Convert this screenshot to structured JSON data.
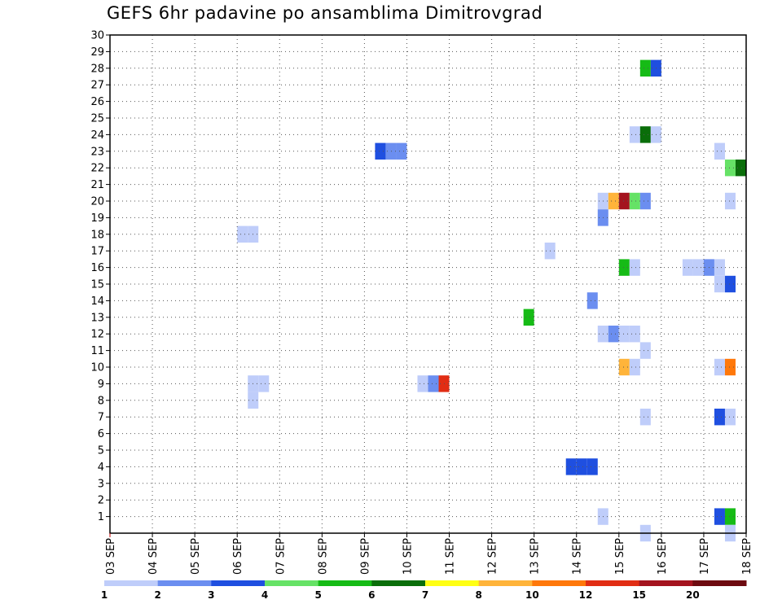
{
  "chart_data": {
    "type": "heatmap",
    "title": "GEFS 6hr padavine po ansamblima Dimitrovgrad",
    "x_ticks": [
      "03 SEP",
      "04 SEP",
      "05 SEP",
      "06 SEP",
      "07 SEP",
      "08 SEP",
      "09 SEP",
      "10 SEP",
      "11 SEP",
      "12 SEP",
      "13 SEP",
      "14 SEP",
      "15 SEP",
      "16 SEP",
      "17 SEP",
      "18 SEP"
    ],
    "y_ticks": [
      1,
      2,
      3,
      4,
      5,
      6,
      7,
      8,
      9,
      10,
      11,
      12,
      13,
      14,
      15,
      16,
      17,
      18,
      19,
      20,
      21,
      22,
      23,
      24,
      25,
      26,
      27,
      28,
      29,
      30
    ],
    "xlim_days": [
      0,
      15
    ],
    "ylim": [
      0,
      30
    ],
    "grid": true,
    "colorbar": {
      "labels": [
        "1",
        "2",
        "3",
        "4",
        "5",
        "6",
        "7",
        "8",
        "10",
        "12",
        "15",
        "20"
      ],
      "colors": [
        "#bfcdfa",
        "#6b8ef0",
        "#1f4fe0",
        "#66e266",
        "#16bb16",
        "#0a6e0a",
        "#ffff14",
        "#ffb43a",
        "#ff780a",
        "#e12d14",
        "#a4141e",
        "#6d0a10"
      ]
    },
    "cells": [
      {
        "day": 3.0,
        "member": 18,
        "level": 0
      },
      {
        "day": 3.25,
        "member": 18,
        "level": 0
      },
      {
        "day": 3.25,
        "member": 9,
        "level": 0
      },
      {
        "day": 3.5,
        "member": 9,
        "level": 0
      },
      {
        "day": 3.25,
        "member": 8,
        "level": 0
      },
      {
        "day": 6.25,
        "member": 23,
        "level": 2
      },
      {
        "day": 6.5,
        "member": 23,
        "level": 1
      },
      {
        "day": 6.75,
        "member": 23,
        "level": 1
      },
      {
        "day": 7.25,
        "member": 9,
        "level": 0
      },
      {
        "day": 7.5,
        "member": 9,
        "level": 1
      },
      {
        "day": 7.75,
        "member": 9,
        "level": 9
      },
      {
        "day": 9.75,
        "member": 13,
        "level": 4
      },
      {
        "day": 10.25,
        "member": 17,
        "level": 0
      },
      {
        "day": 10.75,
        "member": 4,
        "level": 2
      },
      {
        "day": 11.0,
        "member": 4,
        "level": 2
      },
      {
        "day": 11.25,
        "member": 4,
        "level": 2
      },
      {
        "day": 11.25,
        "member": 14,
        "level": 1
      },
      {
        "day": 11.5,
        "member": 20,
        "level": 0
      },
      {
        "day": 11.5,
        "member": 19,
        "level": 1
      },
      {
        "day": 11.5,
        "member": 12,
        "level": 0
      },
      {
        "day": 11.5,
        "member": 1,
        "level": 0
      },
      {
        "day": 11.75,
        "member": 20,
        "level": 7
      },
      {
        "day": 11.75,
        "member": 12,
        "level": 1
      },
      {
        "day": 12.0,
        "member": 20,
        "level": 10
      },
      {
        "day": 12.0,
        "member": 16,
        "level": 4
      },
      {
        "day": 12.0,
        "member": 12,
        "level": 0
      },
      {
        "day": 12.0,
        "member": 10,
        "level": 7
      },
      {
        "day": 12.25,
        "member": 24,
        "level": 0
      },
      {
        "day": 12.25,
        "member": 20,
        "level": 3
      },
      {
        "day": 12.25,
        "member": 16,
        "level": 0
      },
      {
        "day": 12.25,
        "member": 12,
        "level": 0
      },
      {
        "day": 12.25,
        "member": 10,
        "level": 0
      },
      {
        "day": 12.5,
        "member": 28,
        "level": 4
      },
      {
        "day": 12.5,
        "member": 24,
        "level": 5
      },
      {
        "day": 12.5,
        "member": 20,
        "level": 1
      },
      {
        "day": 12.5,
        "member": 11,
        "level": 0
      },
      {
        "day": 12.5,
        "member": 7,
        "level": 0
      },
      {
        "day": 12.5,
        "member": 0,
        "level": 0
      },
      {
        "day": 12.75,
        "member": 28,
        "level": 2
      },
      {
        "day": 12.75,
        "member": 24,
        "level": 0
      },
      {
        "day": 13.5,
        "member": 16,
        "level": 0
      },
      {
        "day": 13.75,
        "member": 16,
        "level": 0
      },
      {
        "day": 14.0,
        "member": 16,
        "level": 1
      },
      {
        "day": 14.25,
        "member": 16,
        "level": 0
      },
      {
        "day": 14.25,
        "member": 23,
        "level": 0
      },
      {
        "day": 14.25,
        "member": 15,
        "level": 0
      },
      {
        "day": 14.25,
        "member": 10,
        "level": 0
      },
      {
        "day": 14.25,
        "member": 7,
        "level": 2
      },
      {
        "day": 14.25,
        "member": 1,
        "level": 2
      },
      {
        "day": 14.5,
        "member": 22,
        "level": 3
      },
      {
        "day": 14.5,
        "member": 20,
        "level": 0
      },
      {
        "day": 14.5,
        "member": 15,
        "level": 2
      },
      {
        "day": 14.5,
        "member": 10,
        "level": 8
      },
      {
        "day": 14.5,
        "member": 7,
        "level": 0
      },
      {
        "day": 14.5,
        "member": 1,
        "level": 4
      },
      {
        "day": 14.5,
        "member": 0,
        "level": 0
      },
      {
        "day": 14.75,
        "member": 22,
        "level": 5
      }
    ]
  }
}
